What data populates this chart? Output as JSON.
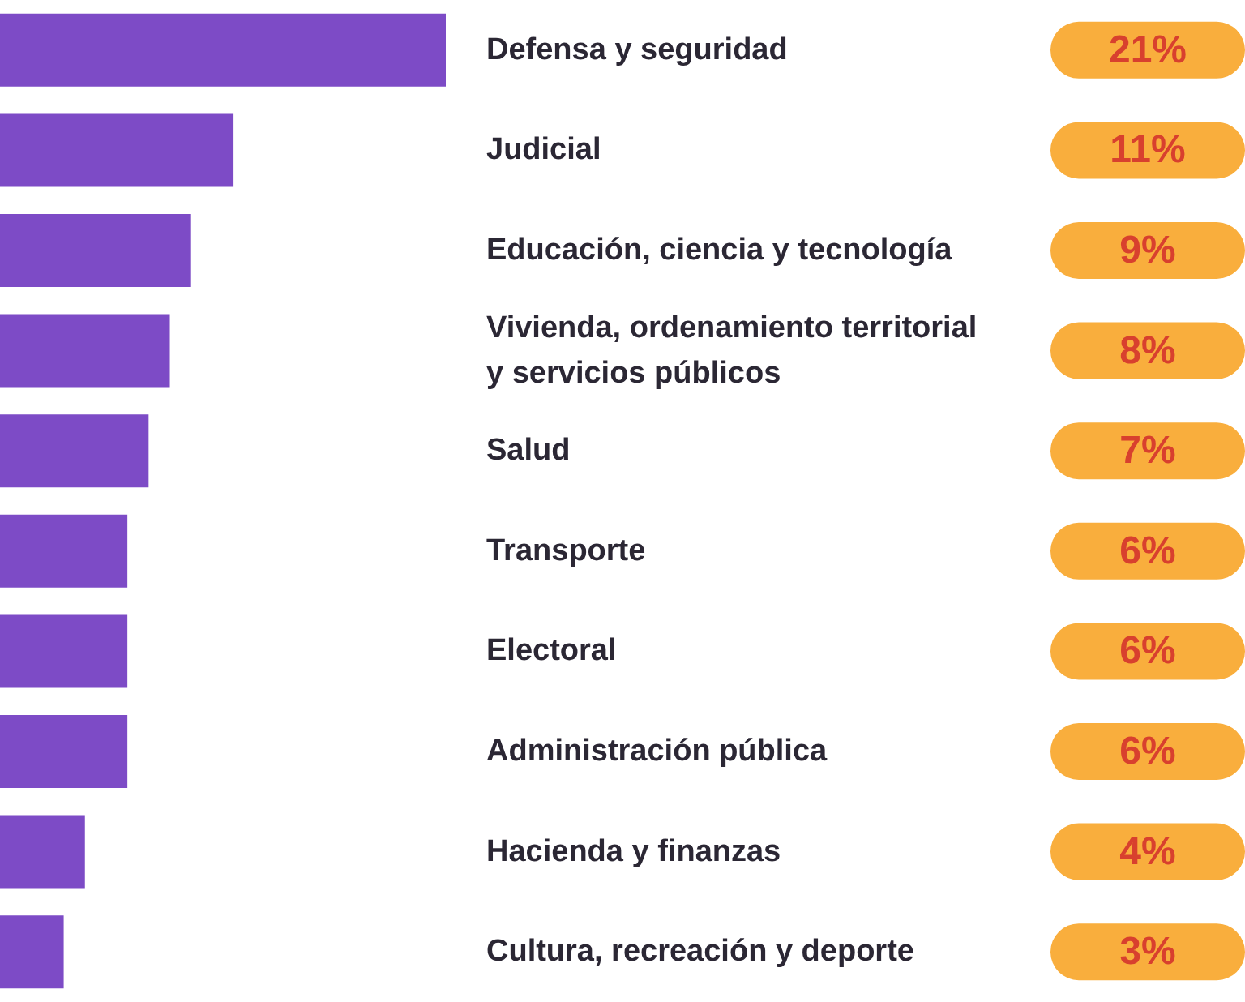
{
  "chart_data": {
    "type": "bar",
    "orientation": "horizontal",
    "categories": [
      "Defensa y seguridad",
      "Judicial",
      "Educación, ciencia y tecnología",
      "Vivienda, ordenamiento territorial\ny servicios públicos",
      "Salud",
      "Transporte",
      "Electoral",
      "Administración pública",
      "Hacienda y finanzas",
      "Cultura, recreación y deporte"
    ],
    "values": [
      21,
      11,
      9,
      8,
      7,
      6,
      6,
      6,
      4,
      3
    ],
    "value_labels": [
      "21%",
      "11%",
      "9%",
      "8%",
      "7%",
      "6%",
      "6%",
      "6%",
      "4%",
      "3%"
    ],
    "color": "#7d4bc6",
    "tick_labels": "y"
  }
}
